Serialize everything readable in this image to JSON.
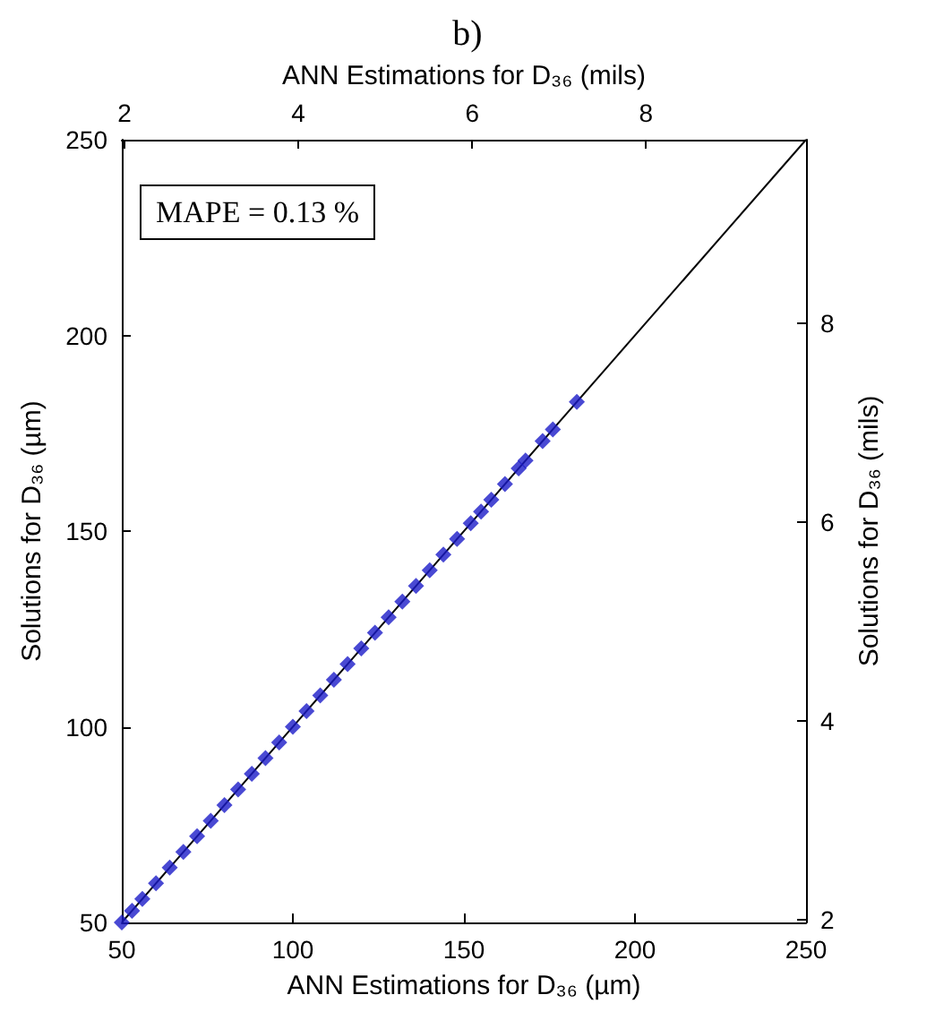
{
  "chart_data": {
    "type": "scatter",
    "title": "b)",
    "xlabel": "ANN Estimations for D₃₆ (µm)",
    "ylabel": "Solutions for D₃₆ (µm)",
    "x2label": "ANN Estimations for D₃₆ (mils)",
    "y2label": "Solutions for D₃₆ (mils)",
    "xlim": [
      50,
      250
    ],
    "xticks": [
      50,
      100,
      150,
      200,
      250
    ],
    "ylim": [
      50,
      250
    ],
    "yticks": [
      50,
      100,
      150,
      200,
      250
    ],
    "x2lim": [
      1.9685,
      9.8425
    ],
    "x2ticks": [
      2,
      4,
      6,
      8
    ],
    "y2lim": [
      1.9685,
      9.8425
    ],
    "y2ticks": [
      2,
      4,
      6,
      8
    ],
    "annotations": [
      "MAPE = 0.13 %"
    ],
    "grid": false,
    "marker": "diamond",
    "series": [
      {
        "color": "#1c1cc8",
        "x": [
          50,
          53,
          56,
          60,
          64,
          68,
          72,
          76,
          80,
          84,
          88,
          92,
          96,
          100,
          104,
          108,
          112,
          116,
          120,
          124,
          128,
          132,
          136,
          140,
          144,
          148,
          152,
          155,
          158,
          162,
          166,
          168,
          173,
          176,
          183
        ],
        "values": [
          50,
          53,
          56,
          60,
          64,
          68,
          72,
          76,
          80,
          84,
          88,
          92,
          96,
          100,
          104,
          108,
          112,
          116,
          120,
          124,
          128,
          132,
          136,
          140,
          144,
          148,
          152,
          155,
          158,
          162,
          166,
          168,
          173,
          176,
          183
        ]
      },
      {
        "type": "line",
        "color": "#000000",
        "marker": "none",
        "line_style": "solid",
        "x": [
          50,
          250
        ],
        "values": [
          50,
          250
        ]
      }
    ]
  }
}
